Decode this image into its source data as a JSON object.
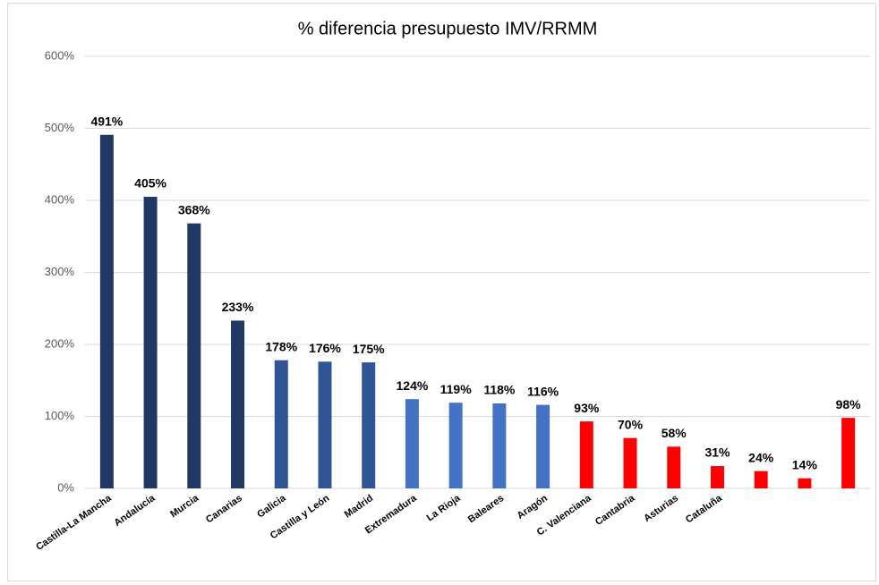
{
  "chart_data": {
    "type": "bar",
    "title": "% diferencia presupuesto IMV/RRMM",
    "categories": [
      "Castilla-La Mancha",
      "Andalucía",
      "Murcia",
      "Canarias",
      "Galicia",
      "Castilla y León",
      "Madrid",
      "Extremadura",
      "La Rioja",
      "Baleares",
      "Aragón",
      "C. Valenciana",
      "Cantabria",
      "Asturias",
      "Cataluña",
      null,
      null,
      null
    ],
    "values": [
      491,
      405,
      368,
      233,
      178,
      176,
      175,
      124,
      119,
      118,
      116,
      93,
      70,
      58,
      31,
      24,
      14,
      98
    ],
    "value_labels": [
      "491%",
      "405%",
      "368%",
      "233%",
      "178%",
      "176%",
      "175%",
      "124%",
      "119%",
      "118%",
      "116%",
      "93%",
      "70%",
      "58%",
      "31%",
      "24%",
      "14%",
      "98%"
    ],
    "colors": [
      "#1f3864",
      "#1f3864",
      "#1f3864",
      "#1f3864",
      "#2f5597",
      "#2f5597",
      "#2f5597",
      "#4472c4",
      "#4472c4",
      "#4472c4",
      "#4472c4",
      "#ff0000",
      "#ff0000",
      "#ff0000",
      "#ff0000",
      "#ff0000",
      "#ff0000",
      "#ff0000"
    ],
    "ylim": [
      0,
      600
    ],
    "yticks": [
      {
        "value": 0,
        "label": "0%"
      },
      {
        "value": 100,
        "label": "100%"
      },
      {
        "value": 200,
        "label": "200%"
      },
      {
        "value": 300,
        "label": "300%"
      },
      {
        "value": 400,
        "label": "400%"
      },
      {
        "value": 500,
        "label": "500%"
      },
      {
        "value": 600,
        "label": "600%"
      }
    ],
    "grid": true
  }
}
